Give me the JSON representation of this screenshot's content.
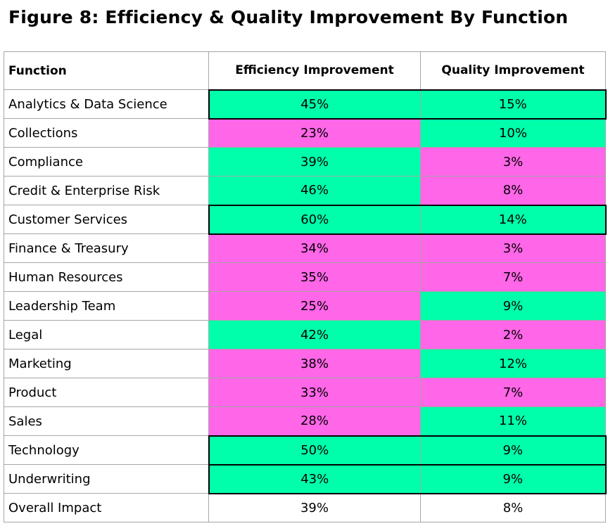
{
  "title": "Figure 8: Efficiency & Quality Improvement By Function",
  "headers": {
    "function": "Function",
    "efficiency": "Efficiency Improvement",
    "quality": "Quality Improvement"
  },
  "colors": {
    "high": "#00ffab",
    "low": "#ff66e8",
    "highlight_border": "#000000"
  },
  "rows": [
    {
      "function": "Analytics & Data Science",
      "efficiency": "45%",
      "quality": "15%",
      "eff_level": "high",
      "qual_level": "high",
      "outlined": true
    },
    {
      "function": "Collections",
      "efficiency": "23%",
      "quality": "10%",
      "eff_level": "low",
      "qual_level": "high",
      "outlined": false
    },
    {
      "function": "Compliance",
      "efficiency": "39%",
      "quality": "3%",
      "eff_level": "high",
      "qual_level": "low",
      "outlined": false
    },
    {
      "function": "Credit & Enterprise Risk",
      "efficiency": "46%",
      "quality": "8%",
      "eff_level": "high",
      "qual_level": "low",
      "outlined": false
    },
    {
      "function": "Customer Services",
      "efficiency": "60%",
      "quality": "14%",
      "eff_level": "high",
      "qual_level": "high",
      "outlined": true
    },
    {
      "function": "Finance & Treasury",
      "efficiency": "34%",
      "quality": "3%",
      "eff_level": "low",
      "qual_level": "low",
      "outlined": false
    },
    {
      "function": "Human Resources",
      "efficiency": "35%",
      "quality": "7%",
      "eff_level": "low",
      "qual_level": "low",
      "outlined": false
    },
    {
      "function": "Leadership Team",
      "efficiency": "25%",
      "quality": "9%",
      "eff_level": "low",
      "qual_level": "high",
      "outlined": false
    },
    {
      "function": "Legal",
      "efficiency": "42%",
      "quality": "2%",
      "eff_level": "high",
      "qual_level": "low",
      "outlined": false
    },
    {
      "function": "Marketing",
      "efficiency": "38%",
      "quality": "12%",
      "eff_level": "low",
      "qual_level": "high",
      "outlined": false
    },
    {
      "function": "Product",
      "efficiency": "33%",
      "quality": "7%",
      "eff_level": "low",
      "qual_level": "low",
      "outlined": false
    },
    {
      "function": "Sales",
      "efficiency": "28%",
      "quality": "11%",
      "eff_level": "low",
      "qual_level": "high",
      "outlined": false
    },
    {
      "function": "Technology",
      "efficiency": "50%",
      "quality": "9%",
      "eff_level": "high",
      "qual_level": "high",
      "outlined": true
    },
    {
      "function": "Underwriting",
      "efficiency": "43%",
      "quality": "9%",
      "eff_level": "high",
      "qual_level": "high",
      "outlined": true
    },
    {
      "function": "Overall Impact",
      "efficiency": "39%",
      "quality": "8%",
      "eff_level": "none",
      "qual_level": "none",
      "outlined": false
    }
  ]
}
